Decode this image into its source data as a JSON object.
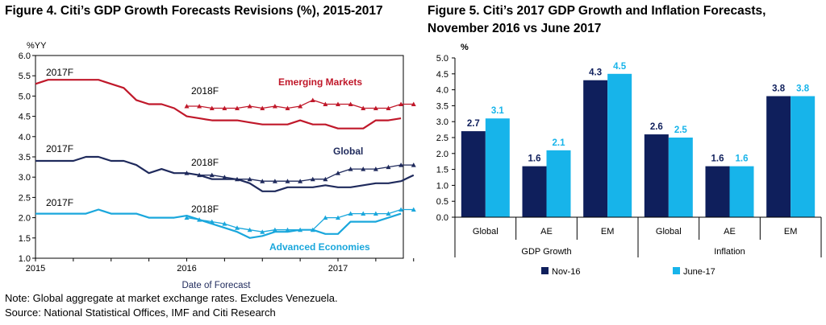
{
  "figure4": {
    "title": "Figure 4. Citi’s GDP Growth Forecasts Revisions (%), 2015-2017"
  },
  "figure5": {
    "title": "Figure 5. Citi’s 2017 GDP Growth and Inflation Forecasts, November 2016 vs June 2017"
  },
  "notes": {
    "note": "Note: Global aggregate at market exchange rates. Excludes Venezuela.",
    "source": "Source: National Statistical Offices, IMF and Citi Research"
  },
  "colors": {
    "emerging": "#c0182a",
    "global": "#1f2a5c",
    "advanced": "#1aa7dc",
    "nov16": "#0f1f5c",
    "jun17": "#17b4ea"
  },
  "chart_data": [
    {
      "type": "line",
      "title": "Figure 4. Citi’s GDP Growth Forecasts Revisions (%), 2015-2017",
      "xlabel": "Date of Forecast",
      "ylabel": "%YY",
      "ylim": [
        1.0,
        6.0
      ],
      "yticks": [
        "1.0",
        "1.5",
        "2.0",
        "2.5",
        "3.0",
        "3.5",
        "4.0",
        "4.5",
        "5.0",
        "5.5",
        "6.0"
      ],
      "xticks": [
        "2015",
        "2016",
        "2017"
      ],
      "grid": false,
      "annotations": [
        "2017F",
        "2018F",
        "2017F",
        "2018F",
        "2017F",
        "2018F"
      ],
      "series": [
        {
          "name": "Emerging Markets",
          "forecast": "2017F",
          "start": "2015-01",
          "values": [
            5.3,
            5.4,
            5.4,
            5.4,
            5.4,
            5.4,
            5.3,
            5.2,
            4.9,
            4.8,
            4.8,
            4.7,
            4.5,
            4.45,
            4.4,
            4.4,
            4.4,
            4.35,
            4.3,
            4.3,
            4.3,
            4.4,
            4.3,
            4.3,
            4.2,
            4.2,
            4.2,
            4.4,
            4.4,
            4.45
          ]
        },
        {
          "name": "Emerging Markets",
          "forecast": "2018F",
          "start": "2016-01",
          "values": [
            4.75,
            4.75,
            4.7,
            4.7,
            4.7,
            4.75,
            4.7,
            4.75,
            4.7,
            4.75,
            4.9,
            4.8,
            4.8,
            4.8,
            4.7,
            4.7,
            4.7,
            4.8,
            4.8
          ]
        },
        {
          "name": "Global",
          "forecast": "2017F",
          "start": "2015-01",
          "values": [
            3.4,
            3.4,
            3.4,
            3.4,
            3.5,
            3.5,
            3.4,
            3.4,
            3.3,
            3.1,
            3.2,
            3.1,
            3.1,
            3.05,
            2.95,
            2.95,
            2.95,
            2.85,
            2.65,
            2.65,
            2.75,
            2.75,
            2.75,
            2.8,
            2.75,
            2.75,
            2.8,
            2.85,
            2.85,
            2.9,
            3.05
          ]
        },
        {
          "name": "Global",
          "forecast": "2018F",
          "start": "2016-01",
          "values": [
            3.1,
            3.05,
            3.05,
            3.0,
            2.95,
            2.95,
            2.9,
            2.9,
            2.9,
            2.9,
            2.95,
            2.95,
            3.1,
            3.2,
            3.2,
            3.2,
            3.25,
            3.3,
            3.3
          ]
        },
        {
          "name": "Advanced Economies",
          "forecast": "2017F",
          "start": "2015-01",
          "values": [
            2.1,
            2.1,
            2.1,
            2.1,
            2.1,
            2.2,
            2.1,
            2.1,
            2.1,
            2.0,
            2.0,
            2.0,
            2.05,
            1.95,
            1.85,
            1.75,
            1.65,
            1.5,
            1.55,
            1.65,
            1.65,
            1.7,
            1.7,
            1.6,
            1.6,
            1.9,
            1.9,
            1.9,
            2.0,
            2.1
          ]
        },
        {
          "name": "Advanced Economies",
          "forecast": "2018F",
          "start": "2016-01",
          "values": [
            2.0,
            1.95,
            1.9,
            1.85,
            1.75,
            1.7,
            1.65,
            1.7,
            1.7,
            1.7,
            1.7,
            2.0,
            2.0,
            2.1,
            2.1,
            2.1,
            2.1,
            2.2,
            2.2
          ]
        }
      ]
    },
    {
      "type": "bar",
      "title": "Figure 5. Citi’s 2017 GDP Growth and Inflation Forecasts, November 2016 vs June 2017",
      "ylabel": "%",
      "ylim": [
        0.0,
        5.0
      ],
      "yticks": [
        "0.0",
        "0.5",
        "1.0",
        "1.5",
        "2.0",
        "2.5",
        "3.0",
        "3.5",
        "4.0",
        "4.5",
        "5.0"
      ],
      "grid": false,
      "legend": "bottom",
      "categories": [
        "Global",
        "AE",
        "EM",
        "Global",
        "AE",
        "EM"
      ],
      "groups": [
        "GDP Growth",
        "Inflation"
      ],
      "series": [
        {
          "name": "Nov-16",
          "values": [
            2.7,
            1.6,
            4.3,
            2.6,
            1.6,
            3.8
          ]
        },
        {
          "name": "June-17",
          "values": [
            3.1,
            2.1,
            4.5,
            2.5,
            1.6,
            3.8
          ]
        }
      ]
    }
  ]
}
